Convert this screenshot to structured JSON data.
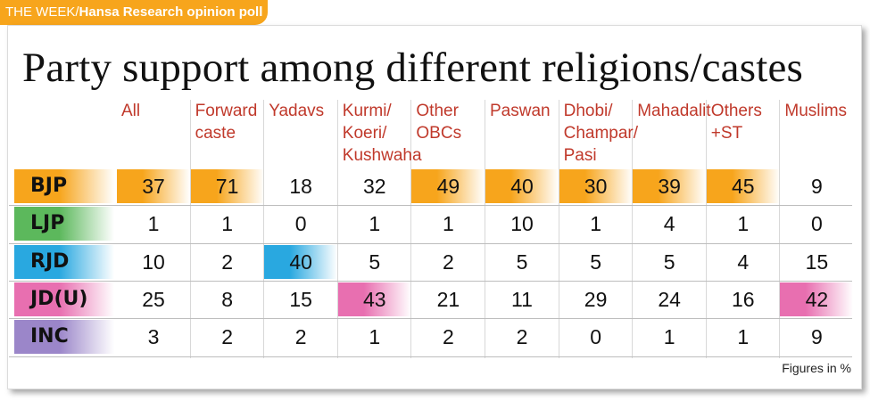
{
  "header": {
    "source_week": "THE WEEK/",
    "source_research": "Hansa Research opinion poll"
  },
  "title": "Party support among different religions/castes",
  "footnote": "Figures in %",
  "colors": {
    "tag": "#f7a51c",
    "header_text": "#c0392b",
    "bjp": "#f7a51c",
    "ljp": "#5cb85c",
    "rjd": "#29a8e0",
    "jdu": "#e86fb0",
    "inc": "#9b86c9"
  },
  "chart_data": {
    "type": "table",
    "columns": [
      "All",
      "Forward\ncaste",
      "Yadavs",
      "Kurmi/\nKoeri/\nKushwaha",
      "Other\nOBCs",
      "Paswan",
      "Dhobi/\nChampar/\nPasi",
      "Mahadalit",
      "Others\n+ST",
      "Muslims"
    ],
    "rows": [
      {
        "party": "BJP",
        "values": [
          37,
          71,
          18,
          32,
          49,
          40,
          30,
          39,
          45,
          9
        ],
        "highlight": [
          0,
          1,
          4,
          5,
          6,
          7,
          8
        ]
      },
      {
        "party": "LJP",
        "values": [
          1,
          1,
          0,
          1,
          1,
          10,
          1,
          4,
          1,
          0
        ],
        "highlight": []
      },
      {
        "party": "RJD",
        "values": [
          10,
          2,
          40,
          5,
          2,
          5,
          5,
          5,
          4,
          15
        ],
        "highlight": [
          2
        ]
      },
      {
        "party": "JD(U)",
        "values": [
          25,
          8,
          15,
          43,
          21,
          11,
          29,
          24,
          16,
          42
        ],
        "highlight": [
          3,
          9
        ]
      },
      {
        "party": "INC",
        "values": [
          3,
          2,
          2,
          1,
          2,
          2,
          0,
          1,
          1,
          9
        ],
        "highlight": []
      }
    ]
  }
}
